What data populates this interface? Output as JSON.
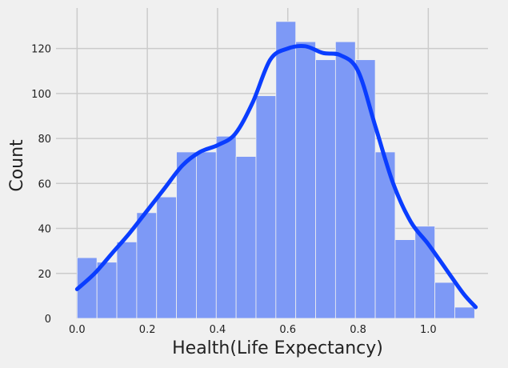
{
  "chart_data": {
    "type": "bar",
    "xlabel": "Health(Life Expectancy)",
    "ylabel": "Count",
    "xlim": [
      -0.06,
      1.17
    ],
    "ylim": [
      0,
      138
    ],
    "grid": true,
    "x_ticks": [
      "0.0",
      "0.2",
      "0.4",
      "0.6",
      "0.8",
      "1.0"
    ],
    "y_ticks": [
      "0",
      "20",
      "40",
      "60",
      "80",
      "100",
      "120"
    ],
    "x_tick_values": [
      0.0,
      0.2,
      0.4,
      0.6,
      0.8,
      1.0
    ],
    "y_tick_values": [
      0,
      20,
      40,
      60,
      80,
      100,
      120
    ],
    "bins": [
      [
        0.0,
        0.0566,
        27
      ],
      [
        0.0566,
        0.1132,
        25
      ],
      [
        0.1132,
        0.1698,
        34
      ],
      [
        0.1698,
        0.2264,
        47
      ],
      [
        0.2264,
        0.283,
        54
      ],
      [
        0.283,
        0.3396,
        74
      ],
      [
        0.3396,
        0.3962,
        74
      ],
      [
        0.3962,
        0.4528,
        81
      ],
      [
        0.4528,
        0.5094,
        72
      ],
      [
        0.5094,
        0.566,
        99
      ],
      [
        0.566,
        0.6226,
        132
      ],
      [
        0.6226,
        0.6792,
        123
      ],
      [
        0.6792,
        0.7358,
        115
      ],
      [
        0.7358,
        0.7924,
        123
      ],
      [
        0.7924,
        0.849,
        115
      ],
      [
        0.849,
        0.9056,
        74
      ],
      [
        0.9056,
        0.9622,
        35
      ],
      [
        0.9622,
        1.0188,
        41
      ],
      [
        1.0188,
        1.0754,
        16
      ],
      [
        1.0754,
        1.132,
        5
      ]
    ],
    "kde": {
      "x": [
        0.0,
        0.05,
        0.1,
        0.15,
        0.2,
        0.25,
        0.3,
        0.35,
        0.4,
        0.45,
        0.5,
        0.55,
        0.6,
        0.65,
        0.7,
        0.75,
        0.8,
        0.85,
        0.9,
        0.95,
        1.0,
        1.05,
        1.1,
        1.135
      ],
      "y": [
        13,
        20,
        29,
        38,
        48,
        58,
        68,
        74,
        77,
        82,
        96,
        115,
        120,
        121,
        118,
        117,
        110,
        85,
        60,
        43,
        33,
        22,
        11,
        5
      ]
    },
    "colors": {
      "bar_fill": "#7d99f6",
      "bar_edge": "#f0f0f0",
      "kde_line": "#0a3dff",
      "grid": "#cbcbcb",
      "background": "#f0f0f0"
    }
  }
}
